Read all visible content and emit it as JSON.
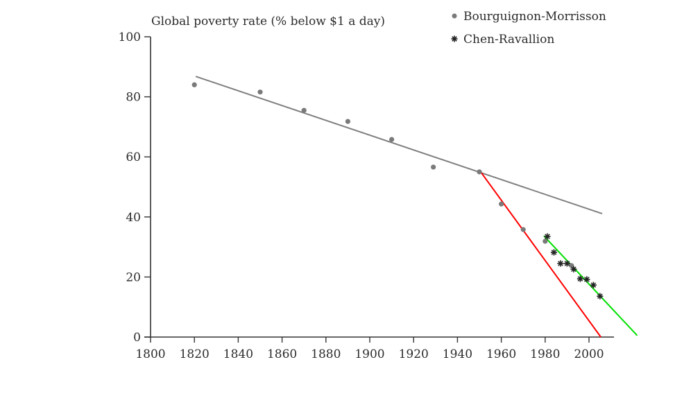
{
  "chart_data": {
    "type": "scatter",
    "title": "Global poverty rate (% below $1 a day)",
    "xlabel": "",
    "ylabel": "Global poverty rate (% below $1 a day)",
    "xlim": [
      1800,
      2010
    ],
    "ylim": [
      0,
      100
    ],
    "x_ticks": [
      1800,
      1820,
      1840,
      1860,
      1880,
      1900,
      1920,
      1940,
      1960,
      1980,
      2000
    ],
    "x_tick_labels": [
      "1800",
      "1820",
      "1840",
      "1860",
      "1880",
      "1900",
      "1920",
      "1940",
      "1960",
      "1980",
      "2000"
    ],
    "y_ticks": [
      0,
      20,
      40,
      60,
      80,
      100
    ],
    "y_tick_labels": [
      "0",
      "20",
      "40",
      "60",
      "80",
      "100"
    ],
    "grid": false,
    "legend_position": "top-right",
    "series": [
      {
        "name": "Bourguignon-Morrisson",
        "marker": "dot",
        "color": "#7a7a7a",
        "x": [
          1820,
          1850,
          1870,
          1890,
          1910,
          1929,
          1950,
          1960,
          1970,
          1980,
          1992
        ],
        "y": [
          84.0,
          81.6,
          75.5,
          71.8,
          65.8,
          56.6,
          55.0,
          44.3,
          35.8,
          31.9,
          23.8
        ]
      },
      {
        "name": "Chen-Ravallion",
        "marker": "star",
        "color": "#222222",
        "x": [
          1981,
          1984,
          1987,
          1990,
          1993,
          1996,
          1999,
          2002,
          2005
        ],
        "y": [
          33.5,
          28.2,
          24.5,
          24.5,
          22.6,
          19.4,
          19.2,
          17.3,
          13.6
        ]
      }
    ],
    "trend_lines": [
      {
        "name": "long-run-trend",
        "color": "#7f7f7f",
        "x": [
          1820.6,
          2006
        ],
        "y": [
          86.8,
          41.1
        ]
      },
      {
        "name": "post-1950-trend",
        "color": "#ff0000",
        "x": [
          1950.6,
          2005.4
        ],
        "y": [
          55.0,
          0
        ]
      },
      {
        "name": "chen-ravallion-trend",
        "color": "#00e000",
        "x": [
          1979.4,
          2022
        ],
        "y": [
          33.7,
          0.5
        ]
      }
    ]
  }
}
